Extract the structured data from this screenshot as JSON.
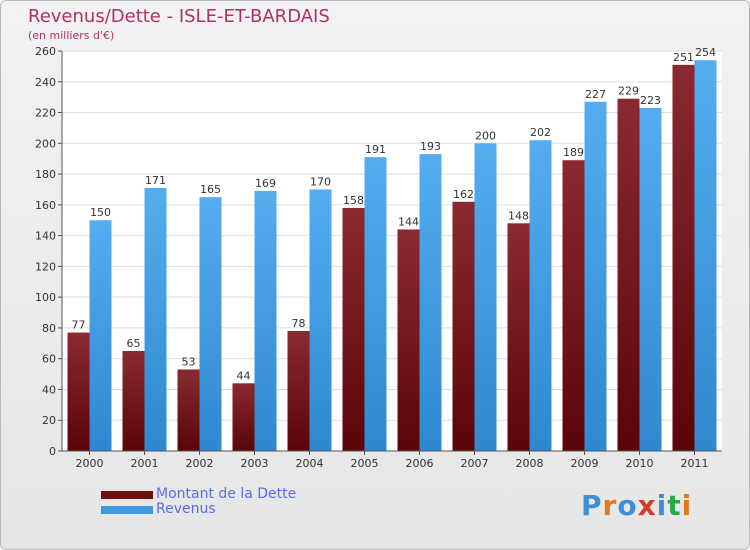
{
  "title": "Revenus/Dette - ISLE-ET-BARDAIS",
  "subtitle": "(en milliers d'€)",
  "legend": [
    {
      "label": "Montant de la Dette",
      "color": "#6e0f12"
    },
    {
      "label": "Revenus",
      "color": "#3f9ae0"
    }
  ],
  "logo": "Proxiti",
  "colors": {
    "debt": "#7a1d22",
    "revenue": "#4aa3ea",
    "title": "#b0306a",
    "legend_text": "#5b6ee1"
  },
  "chart_data": {
    "type": "bar",
    "title": "Revenus/Dette - ISLE-ET-BARDAIS",
    "subtitle": "(en milliers d'€)",
    "categories": [
      "2000",
      "2001",
      "2002",
      "2003",
      "2004",
      "2005",
      "2006",
      "2007",
      "2008",
      "2009",
      "2010",
      "2011"
    ],
    "series": [
      {
        "name": "Montant de la Dette",
        "values": [
          77,
          65,
          53,
          44,
          78,
          158,
          144,
          162,
          148,
          189,
          229,
          251
        ]
      },
      {
        "name": "Revenus",
        "values": [
          150,
          171,
          165,
          169,
          170,
          191,
          193,
          200,
          202,
          227,
          223,
          254
        ]
      }
    ],
    "ylim": [
      0,
      260
    ],
    "yticks": [
      0,
      20,
      40,
      60,
      80,
      100,
      120,
      140,
      160,
      180,
      200,
      220,
      240,
      260
    ],
    "grid": true,
    "legend_position": "bottom-left"
  }
}
